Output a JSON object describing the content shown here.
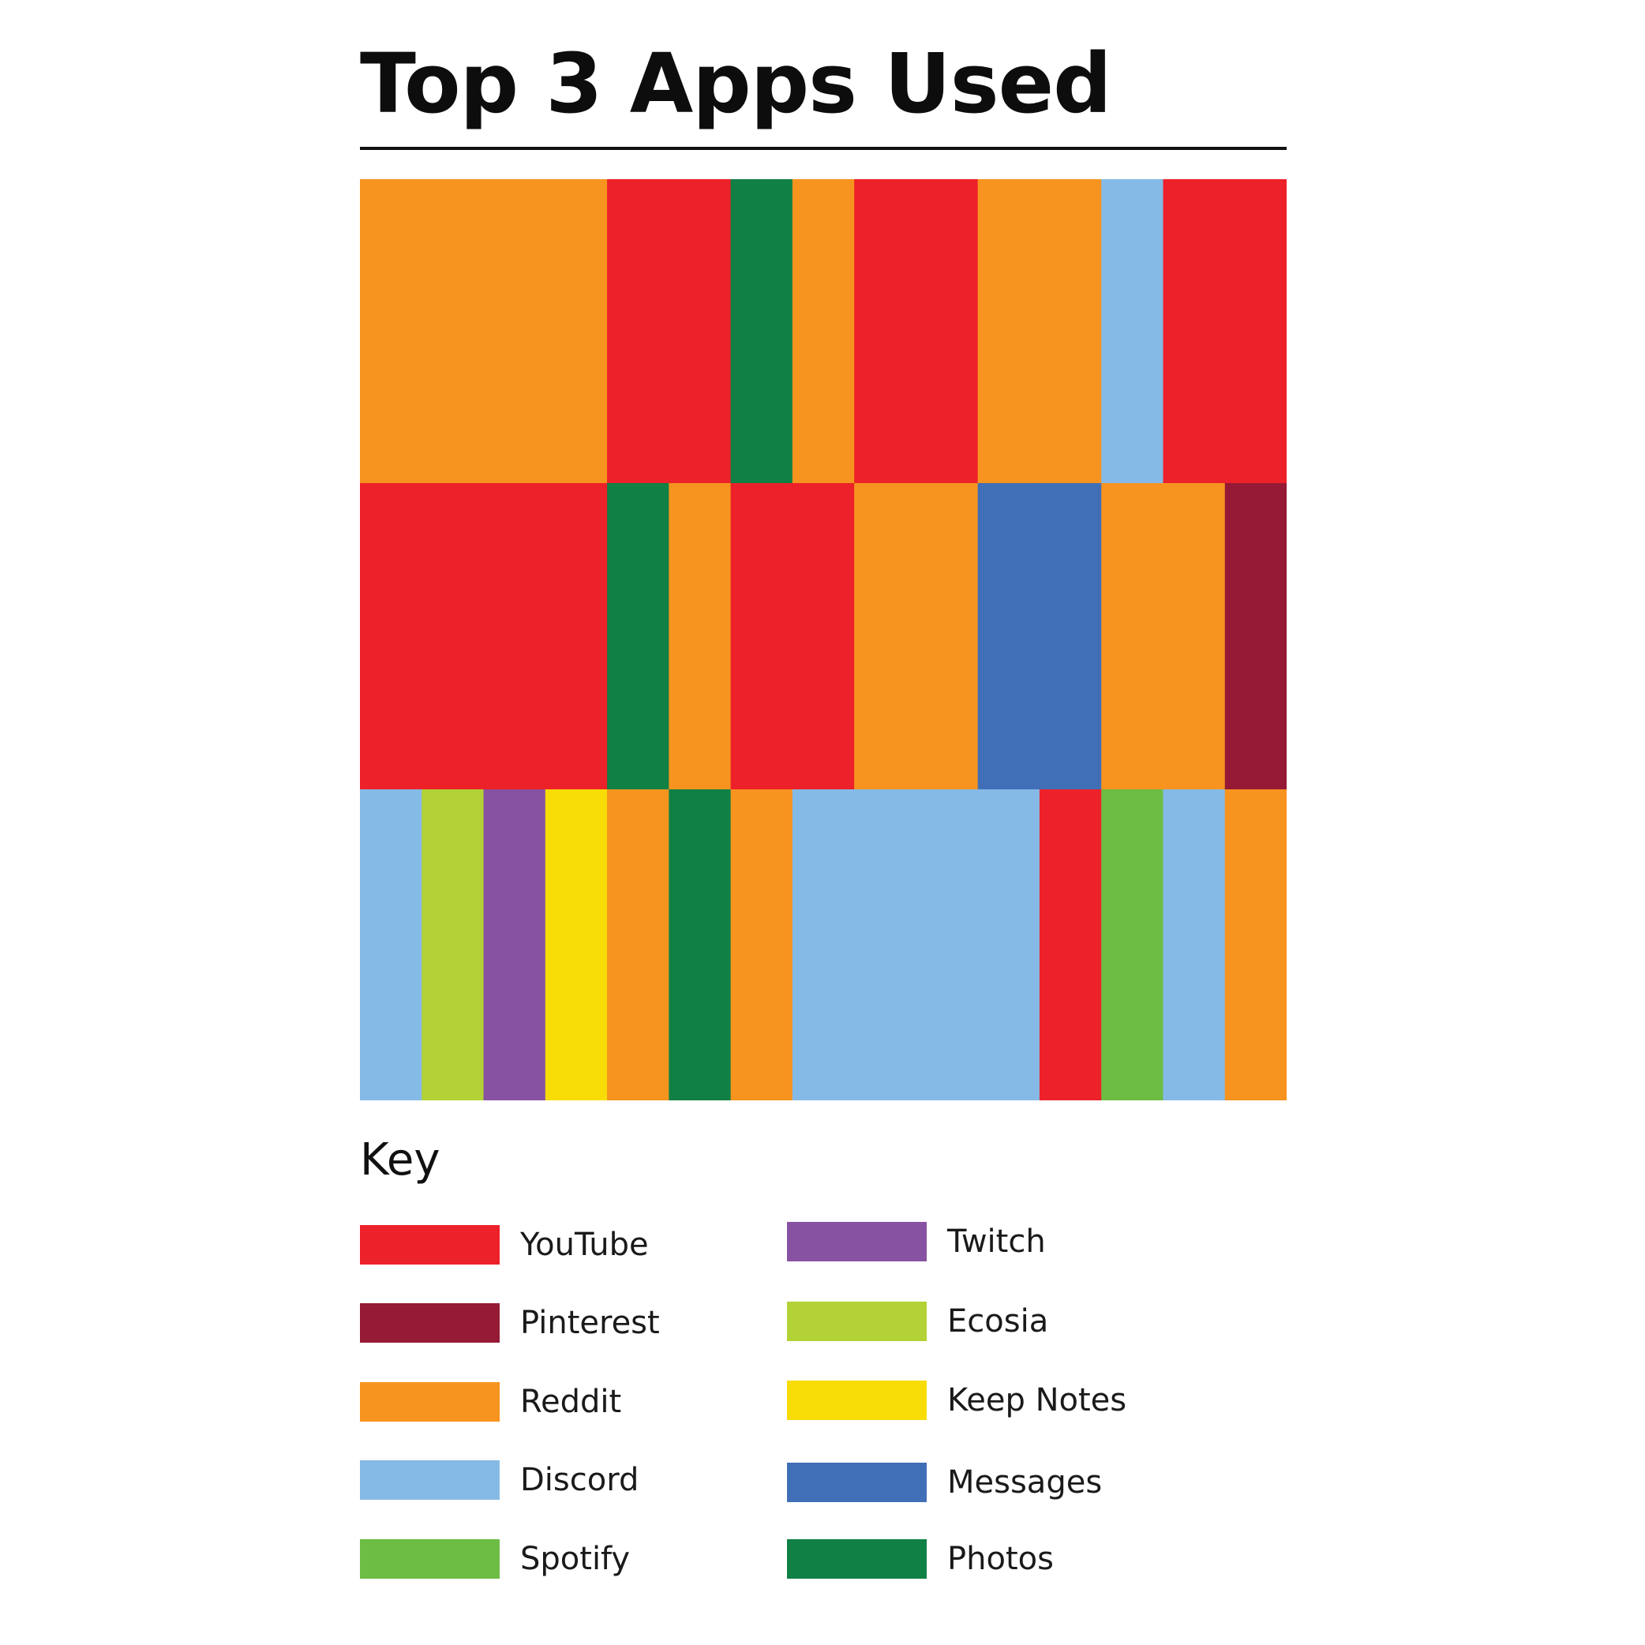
{
  "title": "Top 3 Apps Used",
  "chart_data": {
    "type": "heatmap",
    "title": "Top 3 Apps Used",
    "rows": 3,
    "columns": 15,
    "cells": [
      [
        "Reddit",
        "Reddit",
        "Reddit",
        "Reddit",
        "YouTube",
        "YouTube",
        "Photos",
        "Reddit",
        "YouTube",
        "YouTube",
        "Reddit",
        "Reddit",
        "Discord",
        "YouTube",
        "YouTube"
      ],
      [
        "YouTube",
        "YouTube",
        "YouTube",
        "YouTube",
        "Photos",
        "Reddit",
        "YouTube",
        "YouTube",
        "Reddit",
        "Reddit",
        "Messages",
        "Messages",
        "Reddit",
        "Reddit",
        "Pinterest"
      ],
      [
        "Discord",
        "Ecosia",
        "Twitch",
        "Keep Notes",
        "Reddit",
        "Photos",
        "Reddit",
        "Discord",
        "Discord",
        "Discord",
        "Discord",
        "YouTube",
        "Spotify",
        "Discord",
        "Reddit"
      ]
    ],
    "legend_title": "Key",
    "legend": [
      {
        "name": "YouTube",
        "color": "#ED2129"
      },
      {
        "name": "Pinterest",
        "color": "#961A35"
      },
      {
        "name": "Reddit",
        "color": "#F7941F"
      },
      {
        "name": "Discord",
        "color": "#86BAE6"
      },
      {
        "name": "Spotify",
        "color": "#6DBD45"
      },
      {
        "name": "Twitch",
        "color": "#8852A3"
      },
      {
        "name": "Ecosia",
        "color": "#B2D235"
      },
      {
        "name": "Keep Notes",
        "color": "#F8DC06"
      },
      {
        "name": "Messages",
        "color": "#416FB7"
      },
      {
        "name": "Photos",
        "color": "#108044"
      }
    ]
  }
}
